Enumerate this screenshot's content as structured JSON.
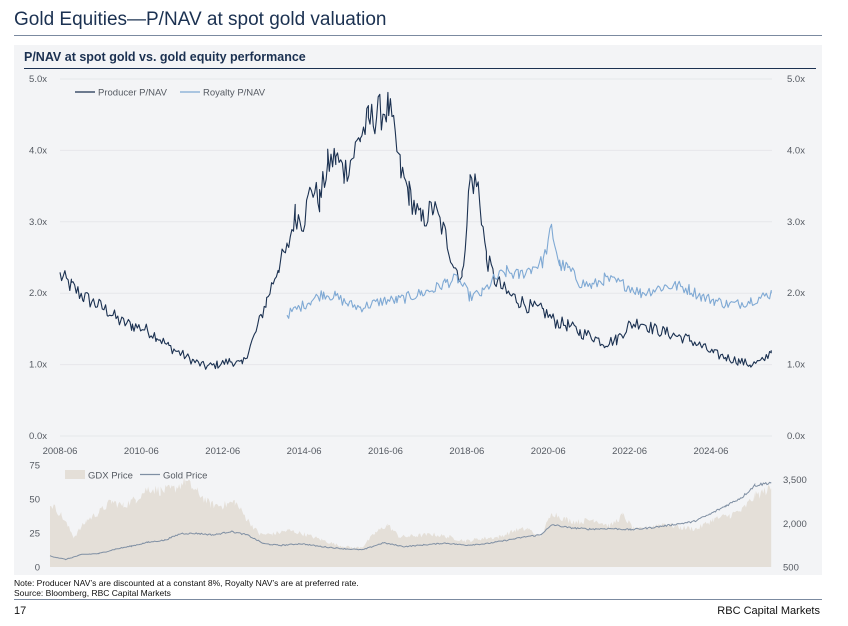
{
  "page": {
    "title": "Gold Equities—P/NAV at spot gold valuation",
    "chart_title": "P/NAV at spot gold vs. gold equity performance",
    "note": "Note: Producer NAV’s are discounted at a constant 8%, Royalty NAV’s are at preferred rate.",
    "source": "Source: Bloomberg, RBC Capital Markets",
    "page_number": "17",
    "brand": "RBC Capital Markets"
  },
  "colors": {
    "producer": "#1b3151",
    "royalty": "#7fa9d4",
    "gdx_fill": "#e4dfd8",
    "gold_line": "#7f8fa3"
  },
  "chart_data": [
    {
      "type": "line",
      "title": "P/NAV at spot gold vs. gold equity performance",
      "xlabel": "",
      "ylabel": "",
      "x_range": [
        2008.42,
        2025.92
      ],
      "ylim": [
        0,
        5
      ],
      "y_tick_labels": [
        "0.0x",
        "1.0x",
        "2.0x",
        "3.0x",
        "4.0x",
        "5.0x"
      ],
      "x_tick_labels": [
        "2008-06",
        "2010-06",
        "2012-06",
        "2014-06",
        "2016-06",
        "2018-06",
        "2020-06",
        "2022-06",
        "2024-06"
      ],
      "legend": "top-left",
      "series": [
        {
          "name": "Producer P/NAV",
          "x": [
            2008.42,
            2008.7,
            2009.0,
            2009.3,
            2009.6,
            2009.9,
            2010.2,
            2010.5,
            2010.8,
            2011.1,
            2011.4,
            2011.7,
            2012.0,
            2012.3,
            2012.6,
            2012.9,
            2013.2,
            2013.5,
            2013.8,
            2014.0,
            2014.2,
            2014.4,
            2014.6,
            2014.8,
            2015.0,
            2015.2,
            2015.4,
            2015.6,
            2015.8,
            2016.0,
            2016.2,
            2016.5,
            2016.8,
            2017.0,
            2017.3,
            2017.6,
            2017.9,
            2018.1,
            2018.3,
            2018.5,
            2018.7,
            2018.9,
            2019.1,
            2019.4,
            2019.7,
            2020.0,
            2020.3,
            2020.6,
            2020.9,
            2021.2,
            2021.5,
            2021.8,
            2022.1,
            2022.4,
            2022.7,
            2023.0,
            2023.3,
            2023.6,
            2023.9,
            2024.2,
            2024.5,
            2024.8,
            2025.1,
            2025.4,
            2025.7,
            2025.9
          ],
          "values": [
            2.25,
            2.1,
            1.95,
            1.85,
            1.75,
            1.6,
            1.55,
            1.5,
            1.4,
            1.25,
            1.15,
            1.05,
            0.97,
            1.0,
            1.05,
            1.0,
            1.4,
            1.9,
            2.4,
            2.6,
            3.1,
            3.0,
            3.5,
            3.3,
            3.8,
            3.9,
            3.7,
            3.9,
            4.2,
            4.4,
            4.5,
            4.6,
            3.7,
            3.4,
            3.0,
            3.2,
            2.8,
            2.4,
            2.2,
            3.6,
            3.5,
            2.5,
            2.2,
            2.0,
            1.9,
            1.8,
            1.75,
            1.6,
            1.55,
            1.45,
            1.4,
            1.3,
            1.35,
            1.55,
            1.6,
            1.5,
            1.45,
            1.4,
            1.35,
            1.25,
            1.15,
            1.1,
            1.05,
            1.0,
            1.05,
            1.2
          ]
        },
        {
          "name": "Royalty  P/NAV",
          "x": [
            2014.0,
            2014.3,
            2014.6,
            2014.9,
            2015.2,
            2015.5,
            2015.8,
            2016.1,
            2016.4,
            2016.7,
            2017.0,
            2017.3,
            2017.6,
            2017.9,
            2018.2,
            2018.5,
            2018.8,
            2019.1,
            2019.4,
            2019.7,
            2020.0,
            2020.3,
            2020.5,
            2020.7,
            2020.9,
            2021.2,
            2021.5,
            2021.8,
            2022.1,
            2022.4,
            2022.7,
            2023.0,
            2023.3,
            2023.6,
            2023.9,
            2024.2,
            2024.5,
            2024.8,
            2025.1,
            2025.4,
            2025.7,
            2025.9
          ],
          "values": [
            1.7,
            1.8,
            1.9,
            2.0,
            1.95,
            1.85,
            1.8,
            1.85,
            1.9,
            1.9,
            1.95,
            2.0,
            2.05,
            2.15,
            2.2,
            1.95,
            2.0,
            2.2,
            2.3,
            2.25,
            2.35,
            2.45,
            2.9,
            2.4,
            2.35,
            2.15,
            2.1,
            2.2,
            2.15,
            2.1,
            2.0,
            2.05,
            2.1,
            2.1,
            2.05,
            1.95,
            1.9,
            1.85,
            1.85,
            1.9,
            1.95,
            2.0
          ]
        }
      ]
    },
    {
      "type": "area",
      "title": "",
      "x_range": [
        2008.42,
        2025.92
      ],
      "y_left_range": [
        0,
        75
      ],
      "y_left_tick_labels": [
        "0",
        "25",
        "50",
        "75"
      ],
      "y_right_range": [
        500,
        4000
      ],
      "y_right_tick_labels": [
        "500",
        "2,000",
        "3,500"
      ],
      "legend": "top-left",
      "series": [
        {
          "name": "GDX Price",
          "axis": "left",
          "x": [
            2008.42,
            2008.7,
            2009.0,
            2009.3,
            2009.6,
            2009.9,
            2010.2,
            2010.5,
            2010.8,
            2011.1,
            2011.4,
            2011.7,
            2012.0,
            2012.3,
            2012.6,
            2012.9,
            2013.2,
            2013.5,
            2013.8,
            2014.2,
            2014.6,
            2015.0,
            2015.4,
            2015.8,
            2016.0,
            2016.3,
            2016.6,
            2016.9,
            2017.3,
            2017.7,
            2018.1,
            2018.5,
            2018.9,
            2019.3,
            2019.7,
            2020.0,
            2020.3,
            2020.6,
            2020.9,
            2021.2,
            2021.6,
            2022.0,
            2022.3,
            2022.6,
            2022.9,
            2023.3,
            2023.7,
            2024.1,
            2024.5,
            2024.9,
            2025.2,
            2025.5,
            2025.9
          ],
          "values": [
            47,
            38,
            22,
            34,
            40,
            48,
            45,
            50,
            58,
            56,
            57,
            63,
            55,
            46,
            45,
            48,
            35,
            24,
            24,
            27,
            24,
            20,
            16,
            14,
            15,
            25,
            31,
            22,
            23,
            24,
            22,
            19,
            21,
            22,
            27,
            28,
            22,
            40,
            35,
            33,
            35,
            30,
            38,
            27,
            29,
            32,
            29,
            28,
            35,
            38,
            42,
            52,
            58
          ]
        },
        {
          "name": "Gold Price",
          "axis": "right",
          "x": [
            2008.42,
            2008.8,
            2009.2,
            2009.6,
            2010.0,
            2010.4,
            2010.8,
            2011.2,
            2011.6,
            2012.0,
            2012.4,
            2012.8,
            2013.2,
            2013.6,
            2014.0,
            2014.5,
            2015.0,
            2015.5,
            2016.0,
            2016.5,
            2017.0,
            2017.5,
            2018.0,
            2018.5,
            2019.0,
            2019.5,
            2020.0,
            2020.3,
            2020.6,
            2021.0,
            2021.5,
            2022.0,
            2022.5,
            2023.0,
            2023.5,
            2024.0,
            2024.4,
            2024.8,
            2025.2,
            2025.5,
            2025.9
          ],
          "values": [
            880,
            760,
            930,
            960,
            1110,
            1220,
            1350,
            1420,
            1650,
            1650,
            1600,
            1720,
            1600,
            1300,
            1240,
            1300,
            1200,
            1130,
            1090,
            1330,
            1200,
            1260,
            1320,
            1250,
            1300,
            1420,
            1550,
            1600,
            1950,
            1850,
            1800,
            1820,
            1780,
            1850,
            1950,
            2050,
            2300,
            2600,
            2900,
            3300,
            3400
          ]
        }
      ]
    }
  ]
}
